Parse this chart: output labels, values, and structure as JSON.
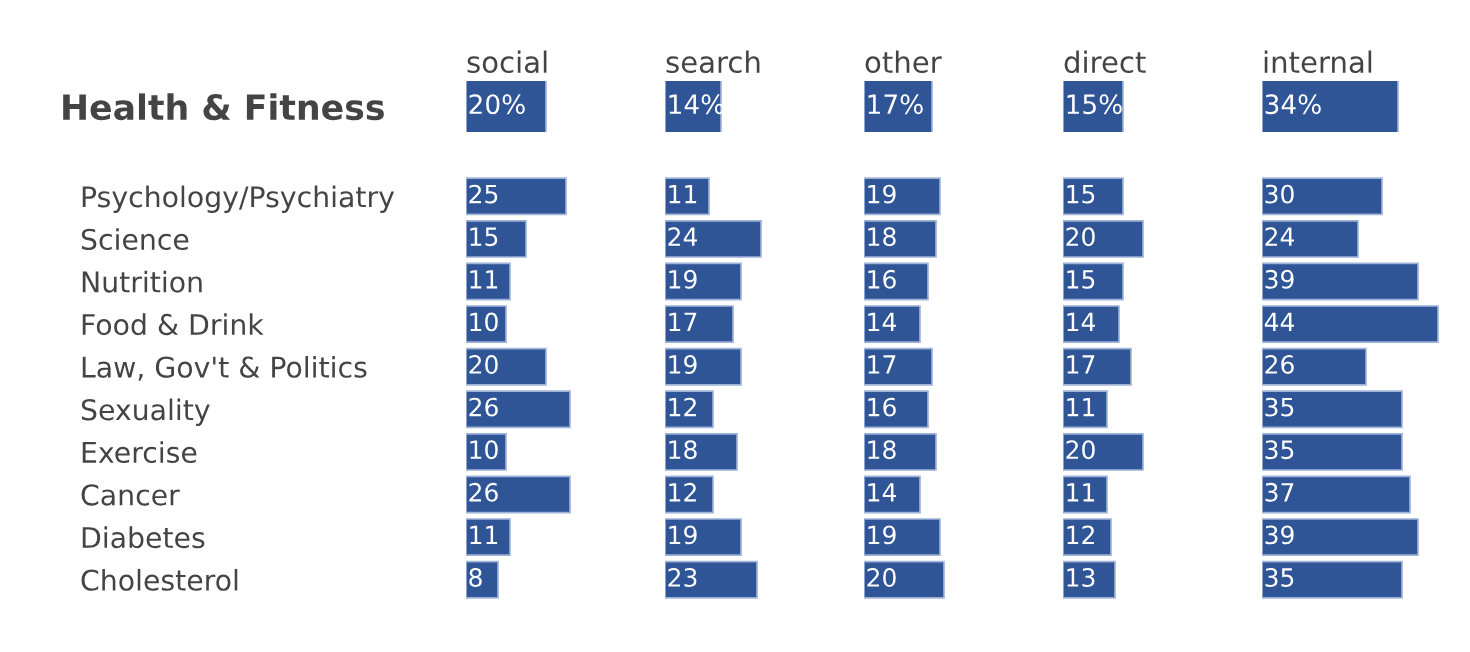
{
  "chart_data": [
    {
      "type": "bar",
      "orientation": "horizontal",
      "title": "social",
      "categories": [
        "Health & Fitness"
      ],
      "values": [
        20
      ],
      "value_labels": [
        "20%"
      ],
      "color": "#2f5597",
      "tick_labels": "y"
    },
    {
      "type": "bar",
      "orientation": "horizontal",
      "title": "search",
      "categories": [
        null
      ],
      "values": [
        14
      ],
      "value_labels": [
        "14%"
      ],
      "color": "#2f5597",
      "tick_labels": false
    },
    {
      "type": "bar",
      "orientation": "horizontal",
      "title": "other",
      "categories": [
        null
      ],
      "values": [
        17
      ],
      "value_labels": [
        "17%"
      ],
      "color": "#2f5597",
      "tick_labels": false
    },
    {
      "type": "bar",
      "orientation": "horizontal",
      "title": "direct",
      "categories": [
        null
      ],
      "values": [
        15
      ],
      "value_labels": [
        "15%"
      ],
      "color": "#2f5597",
      "tick_labels": false
    },
    {
      "type": "bar",
      "orientation": "horizontal",
      "title": "internal",
      "categories": [
        null
      ],
      "values": [
        34
      ],
      "value_labels": [
        "34%"
      ],
      "color": "#2f5597",
      "tick_labels": false
    },
    {
      "type": "bar",
      "orientation": "horizontal",
      "categories": [
        "Psychology/Psychiatry",
        "Science",
        "Nutrition",
        "Food & Drink",
        "Law, Gov't & Politics",
        "Sexuality",
        "Exercise",
        "Cancer",
        "Diabetes",
        "Cholesterol"
      ],
      "values": [
        25,
        15,
        11,
        10,
        20,
        26,
        10,
        26,
        11,
        8
      ],
      "value_labels": [
        "25",
        "15",
        "11",
        "10",
        "20",
        "26",
        "10",
        "26",
        "11",
        "8"
      ],
      "color": "#2f5597",
      "tick_labels": "y"
    },
    {
      "type": "bar",
      "orientation": "horizontal",
      "categories": [
        null,
        null,
        null,
        null,
        null,
        null,
        null,
        null,
        null,
        null
      ],
      "values": [
        11,
        24,
        19,
        17,
        19,
        12,
        18,
        12,
        19,
        23
      ],
      "value_labels": [
        "11",
        "24",
        "19",
        "17",
        "19",
        "12",
        "18",
        "12",
        "19",
        "23"
      ],
      "color": "#2f5597",
      "tick_labels": false
    },
    {
      "type": "bar",
      "orientation": "horizontal",
      "categories": [
        null,
        null,
        null,
        null,
        null,
        null,
        null,
        null,
        null,
        null
      ],
      "values": [
        19,
        18,
        16,
        14,
        17,
        16,
        18,
        14,
        19,
        20
      ],
      "value_labels": [
        "19",
        "18",
        "16",
        "14",
        "17",
        "16",
        "18",
        "14",
        "19",
        "20"
      ],
      "color": "#2f5597",
      "tick_labels": false
    },
    {
      "type": "bar",
      "orientation": "horizontal",
      "categories": [
        null,
        null,
        null,
        null,
        null,
        null,
        null,
        null,
        null,
        null
      ],
      "values": [
        15,
        20,
        15,
        14,
        17,
        11,
        20,
        11,
        12,
        13
      ],
      "value_labels": [
        "15",
        "20",
        "15",
        "14",
        "17",
        "11",
        "20",
        "11",
        "12",
        "13"
      ],
      "color": "#2f5597",
      "tick_labels": false
    },
    {
      "type": "bar",
      "orientation": "horizontal",
      "categories": [
        null,
        null,
        null,
        null,
        null,
        null,
        null,
        null,
        null,
        null
      ],
      "values": [
        30,
        24,
        39,
        44,
        26,
        35,
        35,
        37,
        39,
        35
      ],
      "value_labels": [
        "30",
        "24",
        "39",
        "44",
        "26",
        "35",
        "35",
        "37",
        "39",
        "35"
      ],
      "color": "#2f5597",
      "tick_labels": false
    }
  ]
}
